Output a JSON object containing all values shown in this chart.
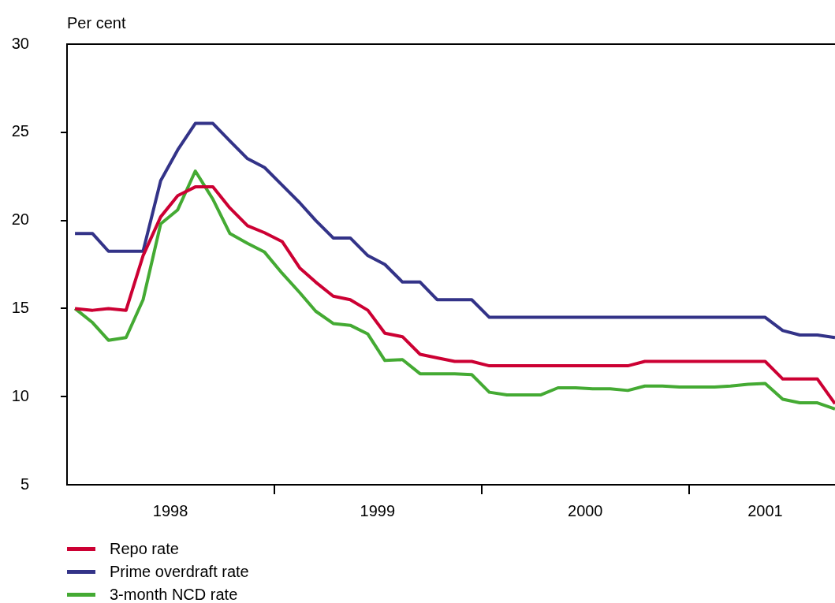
{
  "chart_data": {
    "type": "line",
    "ylabel": "Per cent",
    "x": [
      "1998-01-15",
      "1998-02-15",
      "1998-03-15",
      "1998-04-15",
      "1998-05-15",
      "1998-06-15",
      "1998-07-15",
      "1998-08-15",
      "1998-09-15",
      "1998-10-15",
      "1998-11-15",
      "1998-12-15",
      "1999-01-15",
      "1999-02-15",
      "1999-03-15",
      "1999-04-15",
      "1999-05-15",
      "1999-06-15",
      "1999-07-15",
      "1999-08-15",
      "1999-09-15",
      "1999-10-15",
      "1999-11-15",
      "1999-12-15",
      "2000-01-15",
      "2000-02-15",
      "2000-03-15",
      "2000-04-15",
      "2000-05-15",
      "2000-06-15",
      "2000-07-15",
      "2000-08-15",
      "2000-09-15",
      "2000-10-15",
      "2000-11-15",
      "2000-12-15",
      "2001-01-15",
      "2001-02-15",
      "2001-03-15",
      "2001-04-15",
      "2001-05-15",
      "2001-06-15",
      "2001-07-15",
      "2001-08-15",
      "2001-09-15"
    ],
    "series": [
      {
        "name": "Repo rate",
        "color": "#cc0033",
        "values": [
          15.0,
          14.9,
          15.0,
          14.9,
          18.0,
          20.2,
          21.4,
          21.9,
          21.9,
          20.7,
          19.7,
          19.3,
          18.8,
          17.3,
          16.5,
          15.7,
          15.5,
          14.9,
          13.6,
          13.4,
          12.4,
          12.2,
          12.0,
          12.0,
          11.75,
          11.75,
          11.75,
          11.75,
          11.75,
          11.75,
          11.75,
          11.75,
          11.75,
          12.0,
          12.0,
          12.0,
          12.0,
          12.0,
          12.0,
          12.0,
          12.0,
          11.0,
          11.0,
          11.0,
          9.6
        ]
      },
      {
        "name": "Prime overdraft rate",
        "color": "#333388",
        "values": [
          19.25,
          19.25,
          18.25,
          18.25,
          18.25,
          22.25,
          24.0,
          25.5,
          25.5,
          24.5,
          23.5,
          23.0,
          22.0,
          21.0,
          20.0,
          19.0,
          19.0,
          18.0,
          17.5,
          16.5,
          16.5,
          15.5,
          15.5,
          15.5,
          14.5,
          14.5,
          14.5,
          14.5,
          14.5,
          14.5,
          14.5,
          14.5,
          14.5,
          14.5,
          14.5,
          14.5,
          14.5,
          14.5,
          14.5,
          14.5,
          14.5,
          13.75,
          13.5,
          13.5,
          13.35
        ]
      },
      {
        "name": "3-month NCD rate",
        "color": "#44aa33",
        "values": [
          15.0,
          14.2,
          13.2,
          13.35,
          15.5,
          19.8,
          20.6,
          22.8,
          21.2,
          19.25,
          18.7,
          18.2,
          17.0,
          15.9,
          14.85,
          14.15,
          14.05,
          13.55,
          12.05,
          12.1,
          11.3,
          11.3,
          11.3,
          11.25,
          10.25,
          10.1,
          10.1,
          10.1,
          10.5,
          10.5,
          10.45,
          10.45,
          10.35,
          10.6,
          10.6,
          10.55,
          10.55,
          10.55,
          10.6,
          10.7,
          10.75,
          9.85,
          9.65,
          9.65,
          9.3
        ]
      }
    ],
    "xlim": [
      "1998-01-01",
      "2001-09-15"
    ],
    "xticks": [
      {
        "value": "1998-07-02",
        "label": "1998"
      },
      {
        "value": "1999-01-01",
        "label": null
      },
      {
        "value": "1999-07-02",
        "label": "1999"
      },
      {
        "value": "2000-01-01",
        "label": null
      },
      {
        "value": "2000-07-02",
        "label": "2000"
      },
      {
        "value": "2001-01-01",
        "label": null
      },
      {
        "value": "2001-05-15",
        "label": "2001"
      }
    ],
    "ylim": [
      5,
      30
    ],
    "yticks": [
      5,
      10,
      15,
      20,
      25,
      30
    ],
    "grid": false,
    "legend": "bottom left",
    "marker": "none",
    "line_style": "solid"
  }
}
